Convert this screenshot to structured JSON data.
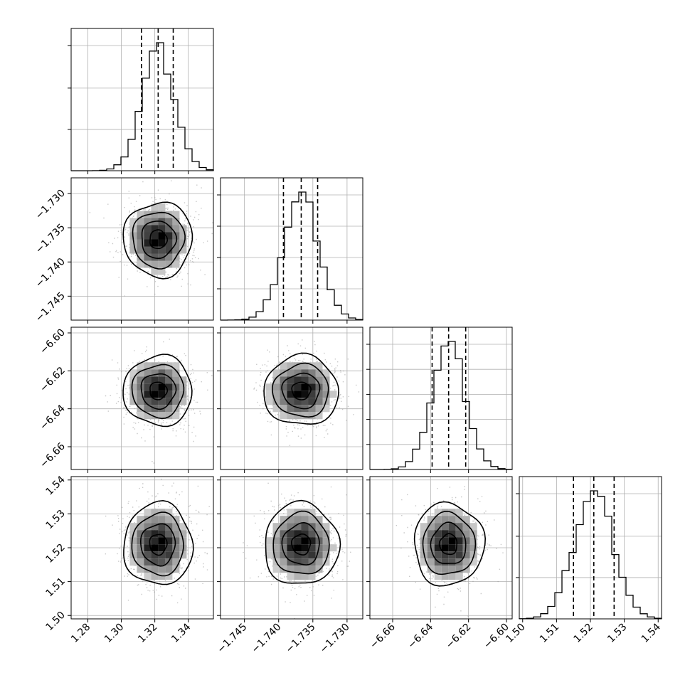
{
  "chart_data": {
    "type": "corner",
    "parameters": [
      {
        "center": 1.322,
        "sigma": 0.0098,
        "range": [
          1.27,
          1.355
        ],
        "ticks": [
          1.28,
          1.3,
          1.32,
          1.34
        ],
        "tick_labels": [
          "1.28",
          "1.30",
          "1.32",
          "1.34"
        ],
        "quantiles": [
          1.312,
          1.322,
          1.331
        ]
      },
      {
        "center": -1.7367,
        "sigma": 0.0026,
        "range": [
          -1.7485,
          -1.7277
        ],
        "ticks": [
          -1.745,
          -1.74,
          -1.735,
          -1.73
        ],
        "tick_labels": [
          "−1.745",
          "−1.740",
          "−1.735",
          "−1.730"
        ],
        "quantiles": [
          -1.7393,
          -1.7367,
          -1.7343
        ]
      },
      {
        "center": -6.6305,
        "sigma": 0.0088,
        "range": [
          -6.672,
          -6.597
        ],
        "ticks": [
          -6.66,
          -6.64,
          -6.62,
          -6.6
        ],
        "tick_labels": [
          "−6.66",
          "−6.64",
          "−6.62",
          "−6.60"
        ],
        "quantiles": [
          -6.6392,
          -6.6305,
          -6.6215
        ]
      },
      {
        "center": 1.521,
        "sigma": 0.0058,
        "range": [
          1.499,
          1.541
        ],
        "ticks": [
          1.5,
          1.51,
          1.52,
          1.53,
          1.54
        ],
        "tick_labels": [
          "1.50",
          "1.51",
          "1.52",
          "1.53",
          "1.54"
        ],
        "quantiles": [
          1.515,
          1.521,
          1.527
        ]
      }
    ],
    "diag_y_ticks": [
      [
        0.33,
        0.66,
        1.0
      ],
      [
        0.25,
        0.5,
        0.75,
        1.0
      ],
      [
        0.2,
        0.4,
        0.6,
        0.8,
        1.0
      ],
      [
        0.33,
        0.66,
        1.0
      ]
    ],
    "contour_levels": [
      0.5,
      1.0,
      1.5,
      2.0
    ],
    "grid": true,
    "colors": {
      "points": "#9a9a9a",
      "lines": "#000000",
      "grid": "#b0b0b0"
    }
  }
}
